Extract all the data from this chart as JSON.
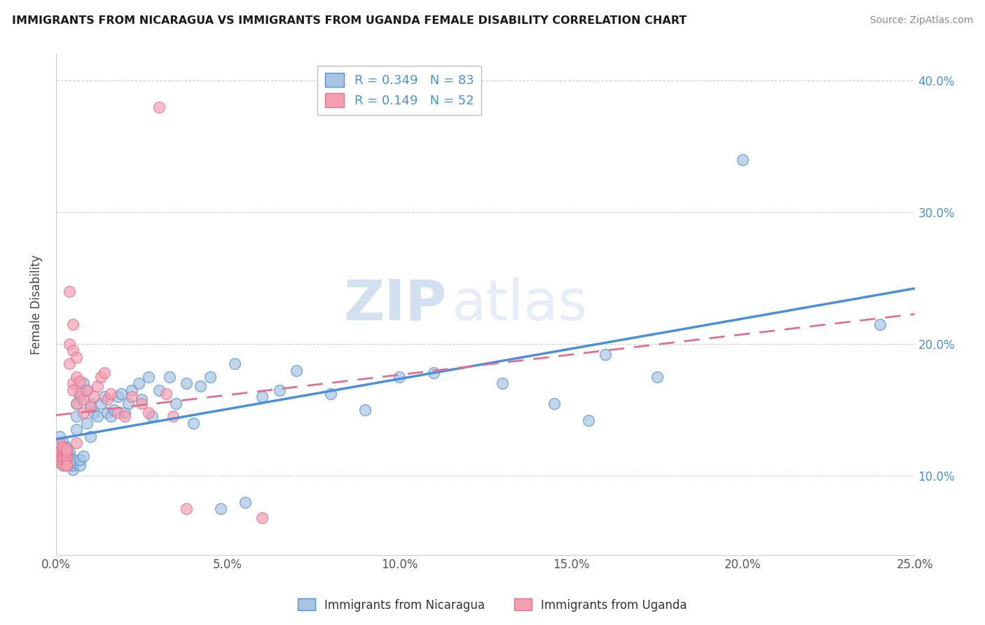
{
  "title": "IMMIGRANTS FROM NICARAGUA VS IMMIGRANTS FROM UGANDA FEMALE DISABILITY CORRELATION CHART",
  "source": "Source: ZipAtlas.com",
  "xlabel": "",
  "ylabel": "Female Disability",
  "xlim": [
    0.0,
    0.25
  ],
  "ylim": [
    0.04,
    0.42
  ],
  "xticks": [
    0.0,
    0.05,
    0.1,
    0.15,
    0.2,
    0.25
  ],
  "yticks": [
    0.1,
    0.2,
    0.3,
    0.4
  ],
  "xticklabels": [
    "0.0%",
    "5.0%",
    "10.0%",
    "15.0%",
    "20.0%",
    "25.0%"
  ],
  "yticklabels": [
    "10.0%",
    "20.0%",
    "30.0%",
    "40.0%"
  ],
  "nicaragua_R": 0.349,
  "nicaragua_N": 83,
  "uganda_R": 0.149,
  "uganda_N": 52,
  "nicaragua_color": "#a8c4e0",
  "uganda_color": "#f4a0b0",
  "nicaragua_line_color": "#4a90d9",
  "uganda_line_color": "#e07090",
  "watermark_zip": "ZIP",
  "watermark_atlas": "atlas",
  "legend_label_nicaragua": "Immigrants from Nicaragua",
  "legend_label_uganda": "Immigrants from Uganda",
  "nicaragua_x": [
    0.0005,
    0.0005,
    0.001,
    0.001,
    0.001,
    0.001,
    0.001,
    0.001,
    0.001,
    0.002,
    0.002,
    0.002,
    0.002,
    0.002,
    0.002,
    0.002,
    0.003,
    0.003,
    0.003,
    0.003,
    0.003,
    0.003,
    0.004,
    0.004,
    0.004,
    0.004,
    0.004,
    0.005,
    0.005,
    0.005,
    0.005,
    0.006,
    0.006,
    0.006,
    0.007,
    0.007,
    0.007,
    0.008,
    0.008,
    0.009,
    0.009,
    0.01,
    0.01,
    0.011,
    0.012,
    0.013,
    0.014,
    0.015,
    0.016,
    0.017,
    0.018,
    0.019,
    0.02,
    0.021,
    0.022,
    0.024,
    0.025,
    0.027,
    0.028,
    0.03,
    0.033,
    0.035,
    0.038,
    0.04,
    0.042,
    0.045,
    0.048,
    0.052,
    0.055,
    0.06,
    0.065,
    0.07,
    0.08,
    0.09,
    0.1,
    0.11,
    0.13,
    0.145,
    0.155,
    0.16,
    0.175,
    0.2,
    0.24
  ],
  "nicaragua_y": [
    0.12,
    0.125,
    0.115,
    0.118,
    0.12,
    0.122,
    0.125,
    0.13,
    0.11,
    0.112,
    0.115,
    0.118,
    0.12,
    0.122,
    0.125,
    0.108,
    0.11,
    0.112,
    0.115,
    0.118,
    0.12,
    0.122,
    0.108,
    0.11,
    0.113,
    0.115,
    0.118,
    0.105,
    0.108,
    0.11,
    0.112,
    0.135,
    0.145,
    0.155,
    0.108,
    0.112,
    0.16,
    0.115,
    0.17,
    0.14,
    0.165,
    0.13,
    0.155,
    0.148,
    0.145,
    0.155,
    0.16,
    0.148,
    0.145,
    0.15,
    0.16,
    0.162,
    0.148,
    0.155,
    0.165,
    0.17,
    0.158,
    0.175,
    0.145,
    0.165,
    0.175,
    0.155,
    0.17,
    0.14,
    0.168,
    0.175,
    0.075,
    0.185,
    0.08,
    0.16,
    0.165,
    0.18,
    0.162,
    0.15,
    0.175,
    0.178,
    0.17,
    0.155,
    0.142,
    0.192,
    0.175,
    0.34,
    0.215
  ],
  "uganda_x": [
    0.0005,
    0.001,
    0.001,
    0.001,
    0.001,
    0.001,
    0.001,
    0.002,
    0.002,
    0.002,
    0.002,
    0.002,
    0.002,
    0.003,
    0.003,
    0.003,
    0.003,
    0.003,
    0.003,
    0.004,
    0.004,
    0.004,
    0.005,
    0.005,
    0.005,
    0.005,
    0.006,
    0.006,
    0.006,
    0.006,
    0.007,
    0.007,
    0.008,
    0.008,
    0.009,
    0.01,
    0.011,
    0.012,
    0.013,
    0.014,
    0.015,
    0.016,
    0.018,
    0.02,
    0.022,
    0.025,
    0.027,
    0.03,
    0.032,
    0.034,
    0.038,
    0.06
  ],
  "uganda_y": [
    0.115,
    0.11,
    0.112,
    0.115,
    0.118,
    0.12,
    0.125,
    0.108,
    0.112,
    0.115,
    0.118,
    0.12,
    0.122,
    0.108,
    0.112,
    0.115,
    0.118,
    0.12,
    0.108,
    0.185,
    0.2,
    0.24,
    0.17,
    0.195,
    0.215,
    0.165,
    0.125,
    0.155,
    0.175,
    0.19,
    0.162,
    0.172,
    0.148,
    0.158,
    0.165,
    0.152,
    0.16,
    0.168,
    0.175,
    0.178,
    0.158,
    0.162,
    0.148,
    0.145,
    0.16,
    0.155,
    0.148,
    0.38,
    0.162,
    0.145,
    0.075,
    0.068
  ]
}
